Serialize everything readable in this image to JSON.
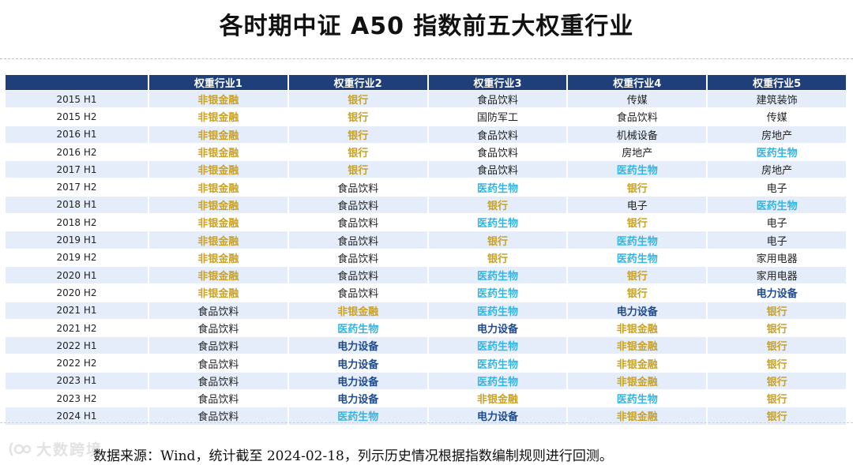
{
  "title": "各时期中证 A50 指数前五大权重行业",
  "table": {
    "headers": [
      "",
      "权重行业1",
      "权重行业2",
      "权重行业3",
      "权重行业4",
      "权重行业5"
    ],
    "rows": [
      {
        "period": "2015 H1",
        "cells": [
          "非银金融",
          "银行",
          "食品饮料",
          "传媒",
          "建筑装饰"
        ]
      },
      {
        "period": "2015 H2",
        "cells": [
          "非银金融",
          "银行",
          "国防军工",
          "食品饮料",
          "传媒"
        ]
      },
      {
        "period": "2016 H1",
        "cells": [
          "非银金融",
          "银行",
          "食品饮料",
          "机械设备",
          "房地产"
        ]
      },
      {
        "period": "2016 H2",
        "cells": [
          "非银金融",
          "银行",
          "食品饮料",
          "房地产",
          "医药生物"
        ]
      },
      {
        "period": "2017 H1",
        "cells": [
          "非银金融",
          "银行",
          "食品饮料",
          "医药生物",
          "房地产"
        ]
      },
      {
        "period": "2017 H2",
        "cells": [
          "非银金融",
          "食品饮料",
          "医药生物",
          "银行",
          "电子"
        ]
      },
      {
        "period": "2018 H1",
        "cells": [
          "非银金融",
          "食品饮料",
          "银行",
          "电子",
          "医药生物"
        ]
      },
      {
        "period": "2018 H2",
        "cells": [
          "非银金融",
          "食品饮料",
          "医药生物",
          "银行",
          "电子"
        ]
      },
      {
        "period": "2019 H1",
        "cells": [
          "非银金融",
          "食品饮料",
          "银行",
          "医药生物",
          "电子"
        ]
      },
      {
        "period": "2019 H2",
        "cells": [
          "非银金融",
          "食品饮料",
          "银行",
          "医药生物",
          "家用电器"
        ]
      },
      {
        "period": "2020 H1",
        "cells": [
          "非银金融",
          "食品饮料",
          "医药生物",
          "银行",
          "家用电器"
        ]
      },
      {
        "period": "2020 H2",
        "cells": [
          "非银金融",
          "食品饮料",
          "医药生物",
          "银行",
          "电力设备"
        ]
      },
      {
        "period": "2021 H1",
        "cells": [
          "食品饮料",
          "非银金融",
          "医药生物",
          "电力设备",
          "银行"
        ]
      },
      {
        "period": "2021 H2",
        "cells": [
          "食品饮料",
          "医药生物",
          "电力设备",
          "非银金融",
          "银行"
        ]
      },
      {
        "period": "2022 H1",
        "cells": [
          "食品饮料",
          "电力设备",
          "医药生物",
          "非银金融",
          "银行"
        ]
      },
      {
        "period": "2022 H2",
        "cells": [
          "食品饮料",
          "电力设备",
          "医药生物",
          "非银金融",
          "银行"
        ]
      },
      {
        "period": "2023 H1",
        "cells": [
          "食品饮料",
          "电力设备",
          "医药生物",
          "非银金融",
          "银行"
        ]
      },
      {
        "period": "2023 H2",
        "cells": [
          "食品饮料",
          "电力设备",
          "非银金融",
          "医药生物",
          "银行"
        ]
      },
      {
        "period": "2024 H1",
        "cells": [
          "食品饮料",
          "医药生物",
          "电力设备",
          "非银金融",
          "银行"
        ]
      }
    ]
  },
  "highlight_colors": {
    "非银金融": "#c9a227",
    "银行": "#c9a227",
    "医药生物": "#34b4e2",
    "电力设备": "#1e4a8f"
  },
  "colors": {
    "header_bg": "#1f3f7a",
    "stripe_bg": "#e4edf9"
  },
  "source_note": "数据来源：Wind，统计截至 2024-02-18，列示历史情况根据指数编制规则进行回测。",
  "watermark": "大数跨境"
}
